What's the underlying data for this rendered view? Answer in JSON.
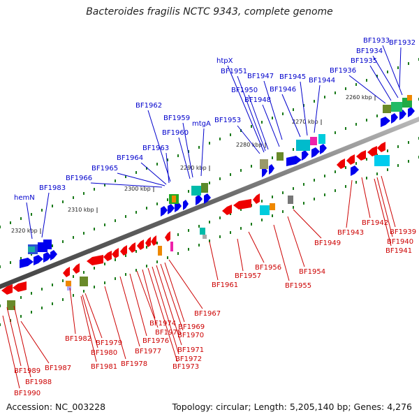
{
  "title": "Bacteroides fragilis NCTC 9343, complete genome",
  "footer": {
    "accession": "Accession: NC_003228",
    "stats": "Topology: circular; Length: 5,205,140 bp; Genes: 4,276"
  },
  "colors": {
    "forward_label": "#0000cc",
    "reverse_label": "#cc0000",
    "forward_gene": "#0000ee",
    "reverse_gene": "#ee0000",
    "tick": "#1a7a1a",
    "axis": "#777777"
  },
  "ticks": [
    "2320 kbp",
    "2310 kbp",
    "2300 kbp",
    "2290 kbp",
    "2280 kbp",
    "2270 kbp",
    "2260 kbp"
  ],
  "forward_genes": [
    "hemN",
    "BF1983",
    "BF1966",
    "BF1965",
    "BF1964",
    "BF1963",
    "BF1962",
    "BF1960",
    "BF1959",
    "mtgA",
    "BF1953",
    "htpX",
    "BF1951",
    "BF1950",
    "BF1948",
    "BF1947",
    "BF1946",
    "BF1945",
    "BF1944",
    "BF1936",
    "BF1935",
    "BF1934",
    "BF1933",
    "BF1932"
  ],
  "reverse_genes": [
    "BF1990",
    "BF1989",
    "BF1988",
    "BF1987",
    "BF1982",
    "BF1981",
    "BF1980",
    "BF1979",
    "BF1978",
    "BF1977",
    "BF1976",
    "BF1975",
    "BF1974",
    "BF1973",
    "BF1972",
    "BF1971",
    "BF1970",
    "BF1969",
    "BF1967",
    "BF1961",
    "BF1957",
    "BF1956",
    "BF1955",
    "BF1954",
    "BF1949",
    "BF1943",
    "BF1942",
    "BF1941",
    "BF1940",
    "BF1939"
  ]
}
